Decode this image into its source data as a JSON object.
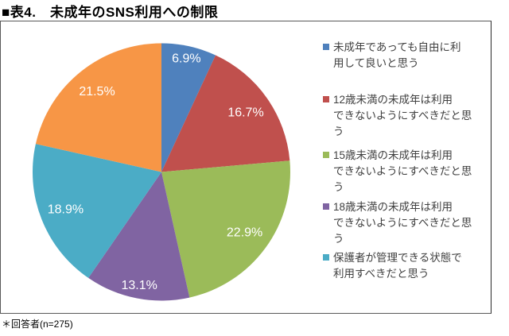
{
  "title": "■表4.　未成年のSNS利用への制限",
  "footnote": "＊回答者(n=275)",
  "respondents": 275,
  "chart_data": {
    "type": "pie",
    "title": "未成年のSNS利用への制限",
    "unit": "%",
    "start_angle_deg": 0,
    "direction": "clockwise",
    "legend_position": "right",
    "slices": [
      {
        "label": "未成年であっても自由に利用して良いと思う",
        "value": 6.9,
        "display": "6.9%",
        "color": "#4F81BD"
      },
      {
        "label": "12歳未満の未成年は利用できないようにすべきだと思う",
        "value": 16.7,
        "display": "16.7%",
        "color": "#C0504D"
      },
      {
        "label": "15歳未満の未成年は利用できないようにすべきだと思う",
        "value": 22.9,
        "display": "22.9%",
        "color": "#9BBB59"
      },
      {
        "label": "18歳未満の未成年は利用できないようにすべきだと思う",
        "value": 13.1,
        "display": "13.1%",
        "color": "#8064A2"
      },
      {
        "label": "保護者が管理できる状態で利用すべきだと思う",
        "value": 18.9,
        "display": "18.9%",
        "color": "#4BACC6"
      },
      {
        "label": "",
        "value": 21.5,
        "display": "21.5%",
        "color": "#F79646"
      }
    ]
  },
  "legend": {
    "items": [
      {
        "text": "未成年であっても自由に利\n用して良いと思う",
        "color": "#4F81BD"
      },
      {
        "text": "12歳未満の未成年は利用\nできないようにすべきだと思\nう",
        "color": "#C0504D"
      },
      {
        "text": "15歳未満の未成年は利用\nできないようにすべきだと思\nう",
        "color": "#9BBB59"
      },
      {
        "text": "18歳未満の未成年は利用\nできないようにすべきだと思\nう",
        "color": "#8064A2"
      },
      {
        "text": "保護者が管理できる状態で\n利用すべきだと思う",
        "color": "#4BACC6"
      }
    ]
  }
}
